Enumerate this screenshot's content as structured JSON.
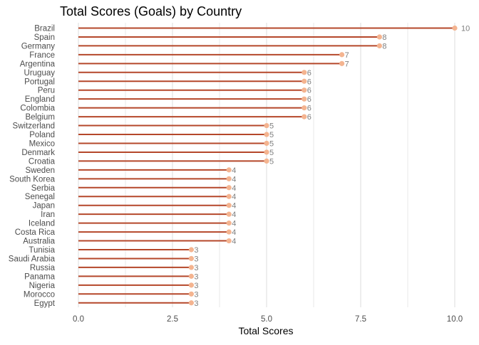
{
  "chart_data": {
    "type": "lollipop",
    "title": "Total Scores (Goals) by Country",
    "xlabel": "Total Scores",
    "ylabel": "",
    "xlim": [
      0,
      10
    ],
    "xticks": [
      "0.0",
      "2.5",
      "5.0",
      "7.5",
      "10.0"
    ],
    "grid": "vertical",
    "categories": [
      "Brazil",
      "Spain",
      "Germany",
      "France",
      "Argentina",
      "Uruguay",
      "Portugal",
      "Peru",
      "England",
      "Colombia",
      "Belgium",
      "Switzerland",
      "Poland",
      "Mexico",
      "Denmark",
      "Croatia",
      "Sweden",
      "South Korea",
      "Serbia",
      "Senegal",
      "Japan",
      "Iran",
      "Iceland",
      "Costa Rica",
      "Australia",
      "Tunisia",
      "Saudi Arabia",
      "Russia",
      "Panama",
      "Nigeria",
      "Morocco",
      "Egypt"
    ],
    "values": [
      10,
      8,
      8,
      7,
      7,
      6,
      6,
      6,
      6,
      6,
      6,
      5,
      5,
      5,
      5,
      5,
      4,
      4,
      4,
      4,
      4,
      4,
      4,
      4,
      4,
      3,
      3,
      3,
      3,
      3,
      3,
      3
    ],
    "colors": {
      "stem": "#b5472a",
      "point": "#f4b490",
      "grid": "#d9d9d9",
      "text": "#4d4d4d",
      "value_label": "#7f7f7f",
      "title": "#000000"
    }
  }
}
